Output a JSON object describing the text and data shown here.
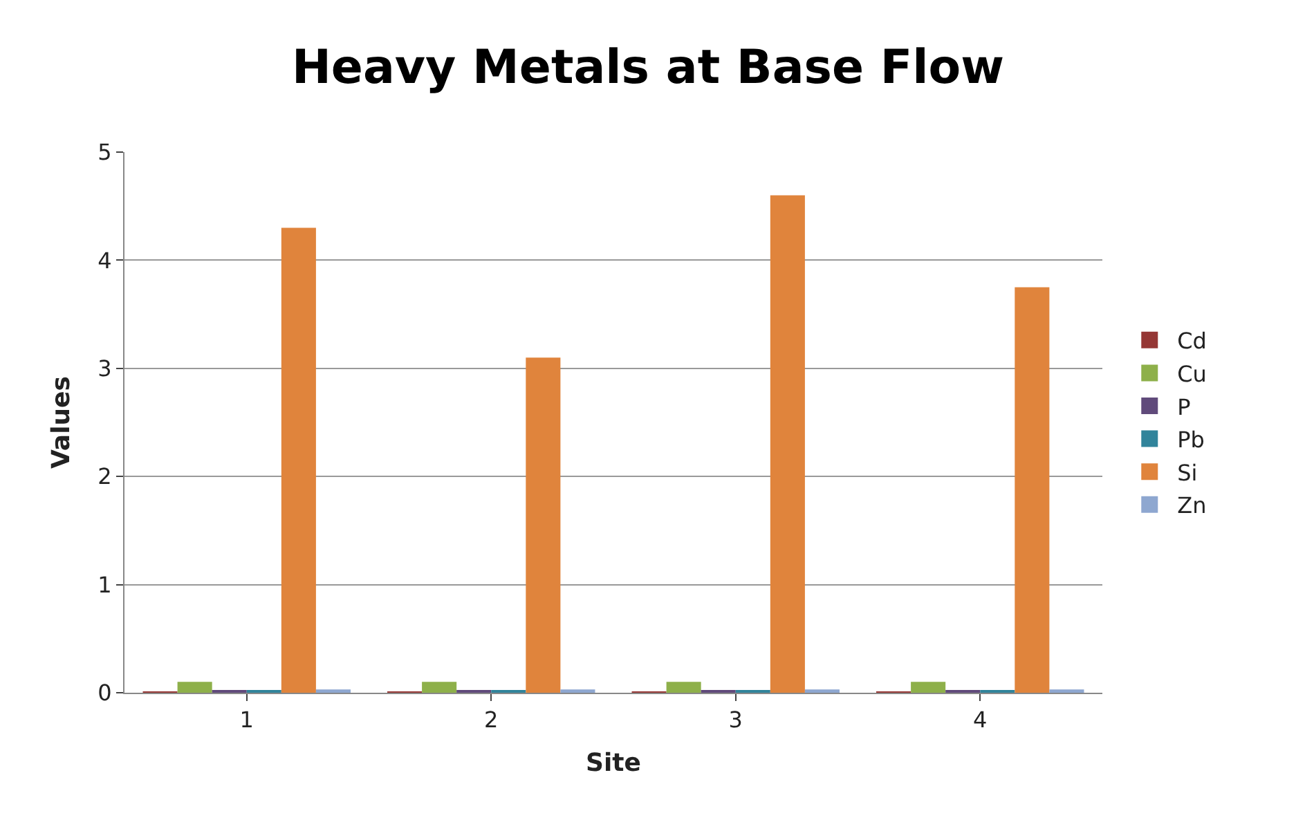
{
  "chart_data": {
    "type": "bar",
    "title": "Heavy Metals at Base Flow",
    "xlabel": "Site",
    "ylabel": "Values",
    "categories": [
      "1",
      "2",
      "3",
      "4"
    ],
    "series": [
      {
        "name": "Cd",
        "color": "#953735",
        "values": [
          0.01,
          0.01,
          0.01,
          0.01
        ]
      },
      {
        "name": "Cu",
        "color": "#8eb04a",
        "values": [
          0.1,
          0.1,
          0.1,
          0.1
        ]
      },
      {
        "name": "P",
        "color": "#604a7b",
        "values": [
          0.02,
          0.02,
          0.02,
          0.02
        ]
      },
      {
        "name": "Pb",
        "color": "#31849b",
        "values": [
          0.02,
          0.02,
          0.02,
          0.02
        ]
      },
      {
        "name": "Si",
        "color": "#e0843c",
        "values": [
          4.3,
          3.1,
          4.6,
          3.75
        ]
      },
      {
        "name": "Zn",
        "color": "#8ea7d0",
        "values": [
          0.03,
          0.03,
          0.03,
          0.03
        ]
      }
    ],
    "ylim": [
      0,
      5
    ],
    "yticks": [
      0,
      1,
      2,
      3,
      4,
      5
    ],
    "grid": "y",
    "legend": "right"
  }
}
